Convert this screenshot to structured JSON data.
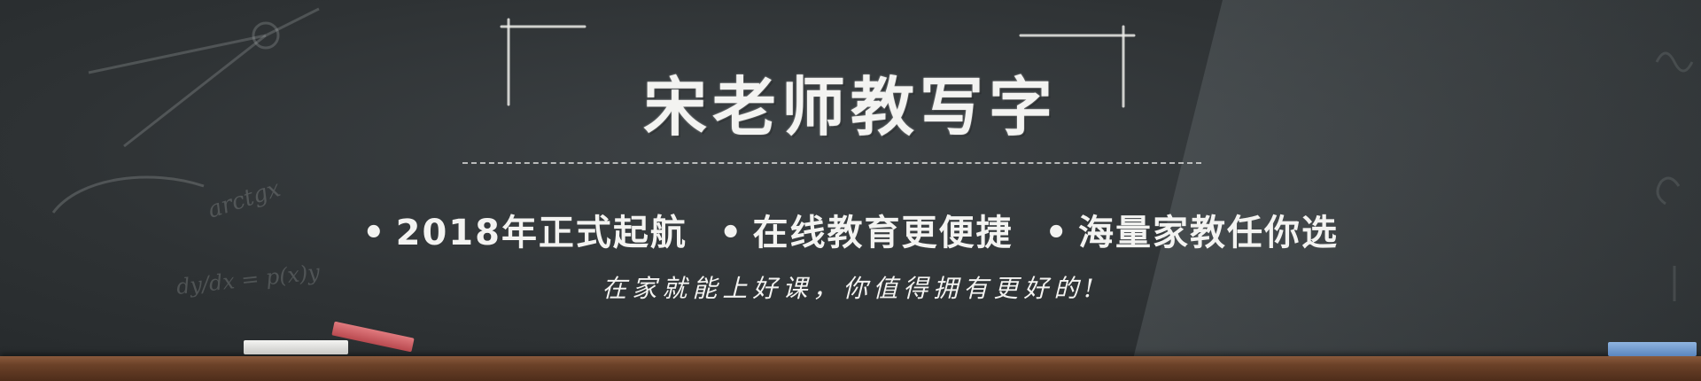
{
  "banner": {
    "title": "宋老师教写字",
    "features": [
      {
        "bullet": "•",
        "text": "2018年正式起航"
      },
      {
        "bullet": "•",
        "text": "在线教育更便捷"
      },
      {
        "bullet": "•",
        "text": "海量家教任你选"
      }
    ],
    "slogan": "在家就能上好课，你值得拥有更好的!",
    "doodles": {
      "formula": "dy/dx = p(x)y",
      "function": "arctgx"
    }
  },
  "colors": {
    "board": "#2e3234",
    "chalk_text": "#f3f3f1",
    "ledge": "#6b4128",
    "chalk_red": "#c9555a",
    "chalk_blue": "#6f97cc"
  }
}
